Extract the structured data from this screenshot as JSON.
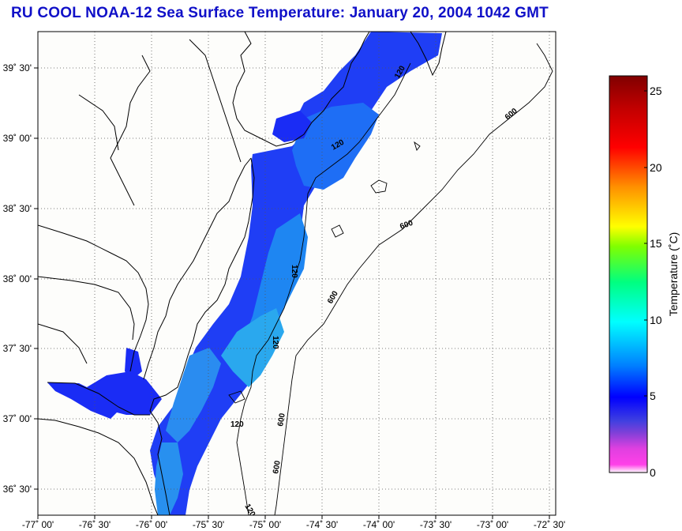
{
  "title": "RU COOL  NOAA-12  Sea Surface Temperature:  January 20, 2004 1042 GMT",
  "map": {
    "lon_labels": [
      "-77˚ 00'",
      "-76˚ 30'",
      "-76˚ 00'",
      "-75˚ 30'",
      "-75˚ 00'",
      "-74˚ 30'",
      "-74˚ 00'",
      "-73˚ 30'",
      "-73˚ 00'",
      "-72˚ 30'"
    ],
    "lat_labels": [
      "39˚ 30'",
      "39˚ 00'",
      "38˚ 30'",
      "38˚ 00'",
      "37˚ 30'",
      "37˚ 00'",
      "36˚ 30'"
    ],
    "contour_labels": [
      "120",
      "120",
      "120",
      "120",
      "120",
      "120",
      "600",
      "600",
      "600",
      "600",
      "600"
    ]
  },
  "colorbar": {
    "label": "Temperature (˚C)",
    "ticks": [
      "25",
      "20",
      "15",
      "10",
      "5",
      "0"
    ],
    "range": [
      0,
      26
    ]
  },
  "colors": {
    "title": "#1010c8",
    "sst_cold": "#1a2cf5",
    "sst_mid": "#1e8cf0",
    "sst_warm": "#38d6ea"
  }
}
